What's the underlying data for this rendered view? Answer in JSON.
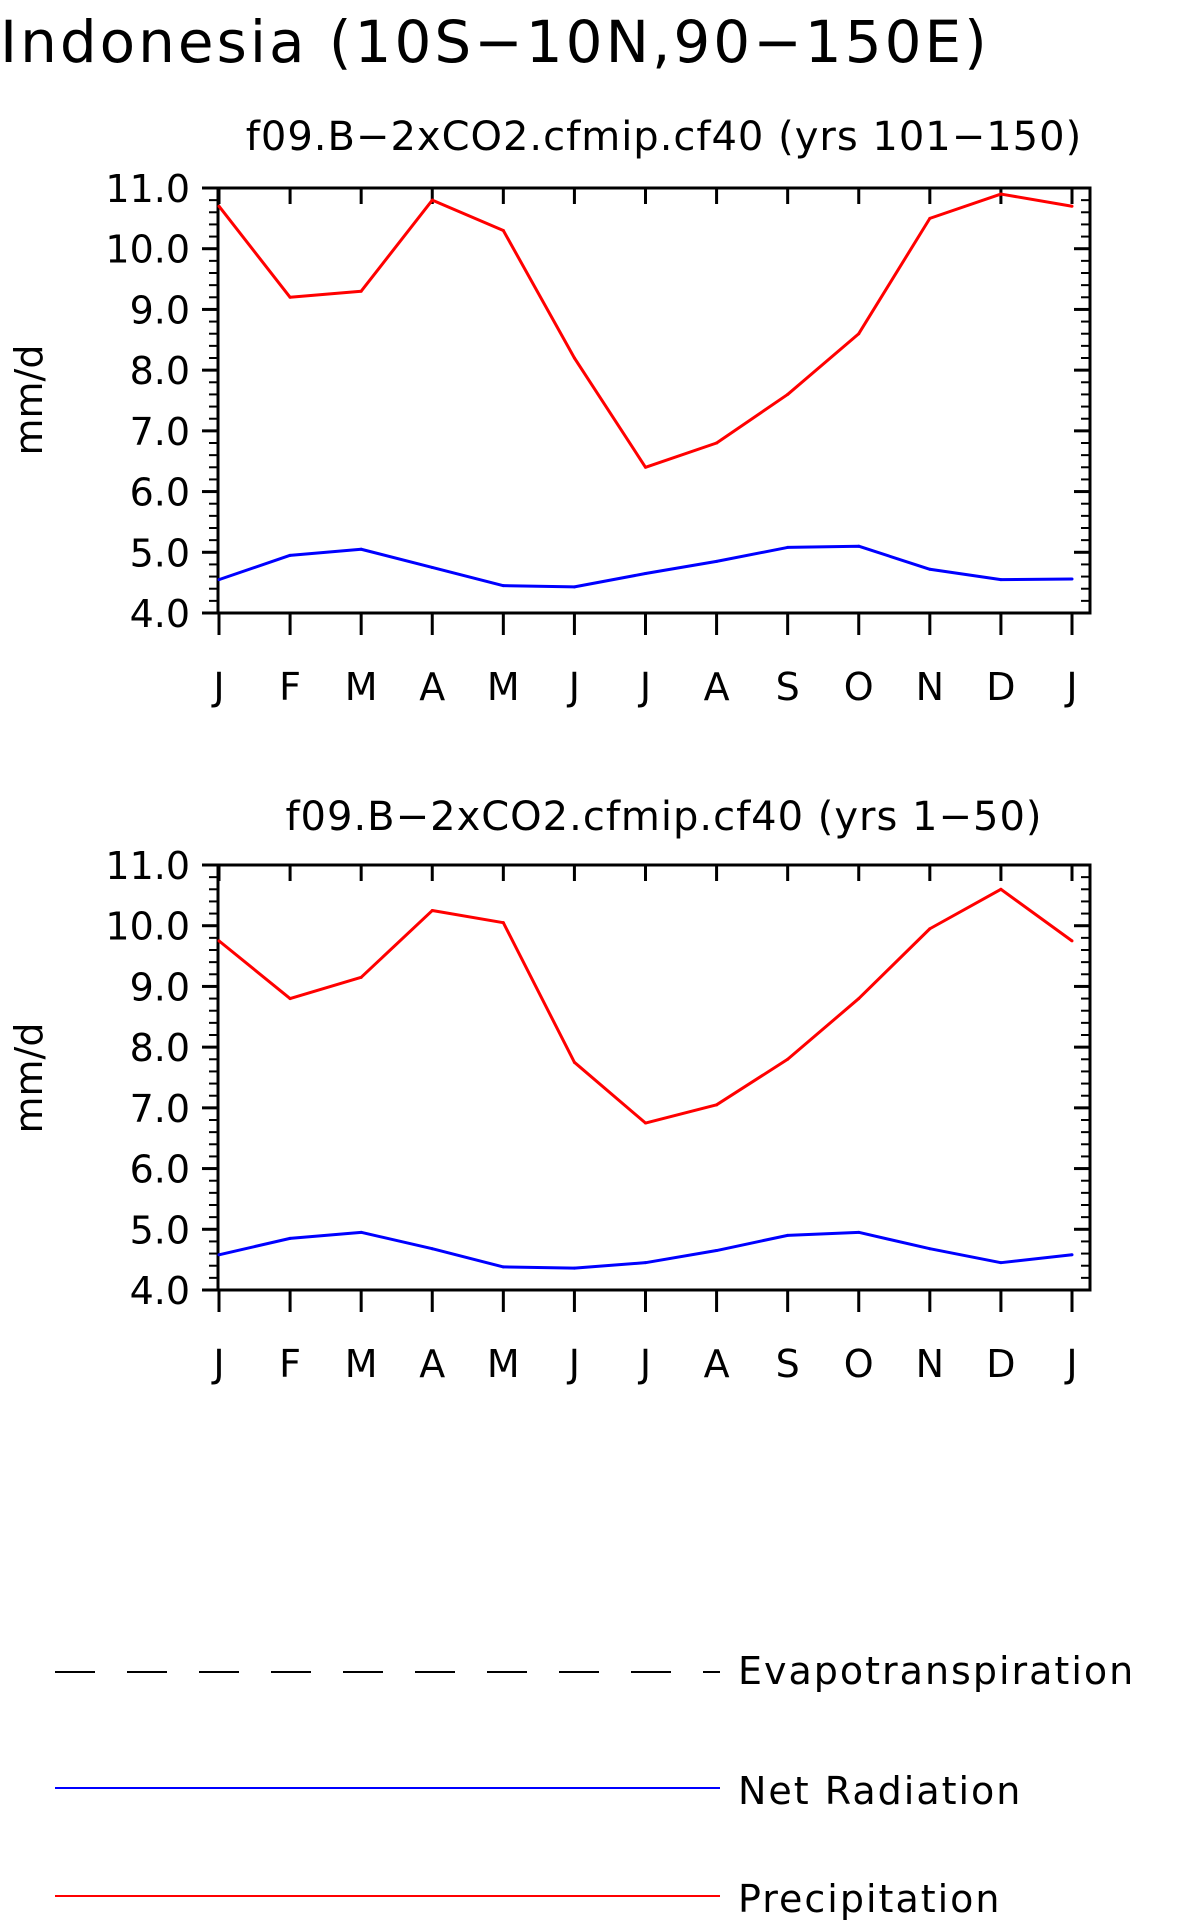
{
  "title": "Indonesia (10S−10N,90−150E)",
  "colors": {
    "Evapotranspiration": "#000000",
    "Net Radiation": "#0000ff",
    "Precipitation": "#ff0000"
  },
  "legend": {
    "placement": "bottom",
    "items": [
      {
        "name": "Evapotranspiration",
        "style": "dashed",
        "color": "#000000"
      },
      {
        "name": "Net Radiation",
        "style": "solid",
        "color": "#0000ff"
      },
      {
        "name": "Precipitation",
        "style": "solid",
        "color": "#ff0000"
      }
    ]
  },
  "chart_data": [
    {
      "type": "line",
      "title": "f09.B−2xCO2.cfmip.cf40 (yrs 101−150)",
      "xlabel": "",
      "ylabel": "mm/d",
      "ylim": [
        4.0,
        11.0
      ],
      "yticks": [
        "4.0",
        "5.0",
        "6.0",
        "7.0",
        "8.0",
        "9.0",
        "10.0",
        "11.0"
      ],
      "categories": [
        "J",
        "F",
        "M",
        "A",
        "M",
        "J",
        "J",
        "A",
        "S",
        "O",
        "N",
        "D",
        "J"
      ],
      "grid": false,
      "series": [
        {
          "name": "Precipitation",
          "values": [
            10.7,
            9.2,
            9.3,
            10.8,
            10.3,
            8.2,
            6.4,
            6.8,
            7.6,
            8.6,
            10.5,
            10.9,
            10.7
          ]
        },
        {
          "name": "Net Radiation",
          "values": [
            4.55,
            4.95,
            5.05,
            4.75,
            4.45,
            4.43,
            4.65,
            4.85,
            5.08,
            5.1,
            4.72,
            4.55,
            4.56
          ]
        }
      ]
    },
    {
      "type": "line",
      "title": "f09.B−2xCO2.cfmip.cf40 (yrs 1−50)",
      "xlabel": "",
      "ylabel": "mm/d",
      "ylim": [
        4.0,
        11.0
      ],
      "yticks": [
        "4.0",
        "5.0",
        "6.0",
        "7.0",
        "8.0",
        "9.0",
        "10.0",
        "11.0"
      ],
      "categories": [
        "J",
        "F",
        "M",
        "A",
        "M",
        "J",
        "J",
        "A",
        "S",
        "O",
        "N",
        "D",
        "J"
      ],
      "grid": false,
      "series": [
        {
          "name": "Precipitation",
          "values": [
            9.75,
            8.8,
            9.15,
            10.25,
            10.05,
            7.75,
            6.75,
            7.05,
            7.8,
            8.8,
            9.95,
            10.6,
            9.75
          ]
        },
        {
          "name": "Net Radiation",
          "values": [
            4.58,
            4.85,
            4.95,
            4.68,
            4.38,
            4.36,
            4.45,
            4.65,
            4.9,
            4.95,
            4.68,
            4.45,
            4.58
          ]
        }
      ]
    }
  ]
}
